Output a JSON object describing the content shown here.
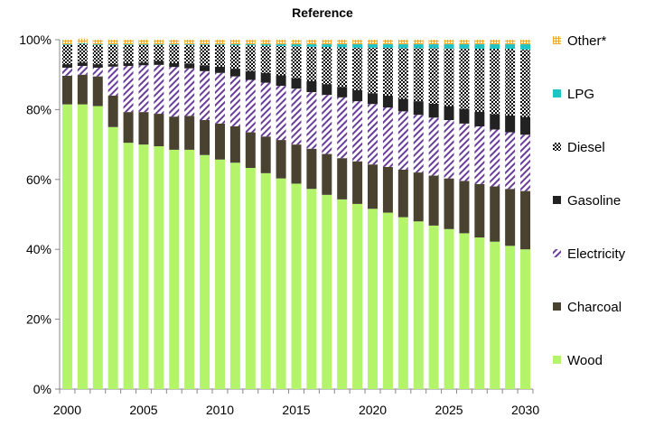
{
  "chart_data": {
    "type": "bar",
    "stacked": true,
    "title": "Reference",
    "xlabel": "",
    "ylabel": "",
    "ylim": [
      0,
      100
    ],
    "y_ticks": [
      "0%",
      "20%",
      "40%",
      "60%",
      "80%",
      "100%"
    ],
    "x_tick_labels": [
      "2000",
      "2005",
      "2010",
      "2015",
      "2020",
      "2025",
      "2030"
    ],
    "legend_placement": "right",
    "categories": [
      2000,
      2001,
      2002,
      2003,
      2004,
      2005,
      2006,
      2007,
      2008,
      2009,
      2010,
      2011,
      2012,
      2013,
      2014,
      2015,
      2016,
      2017,
      2018,
      2019,
      2020,
      2021,
      2022,
      2023,
      2024,
      2025,
      2026,
      2027,
      2028,
      2029,
      2030
    ],
    "series": [
      {
        "name": "Wood",
        "color": "#b3f46b",
        "pattern": "solid",
        "values": [
          81.5,
          81.5,
          81,
          75,
          70.5,
          70,
          69.5,
          68.5,
          68.5,
          67,
          65.7,
          64.8,
          63.3,
          61.8,
          60.3,
          58.8,
          57.3,
          55.6,
          54.3,
          53,
          51.6,
          50.5,
          49.2,
          48,
          46.8,
          45.8,
          44.6,
          43.4,
          42.2,
          41,
          40
        ]
      },
      {
        "name": "Charcoal",
        "color": "#4a4230",
        "pattern": "solid",
        "values": [
          8.2,
          8.5,
          8.5,
          9,
          8.8,
          9.3,
          9.3,
          9.5,
          9.7,
          10,
          10.3,
          10.4,
          10.2,
          10.5,
          11,
          11.2,
          11.5,
          11.7,
          11.8,
          12.2,
          12.7,
          13.1,
          13.6,
          14,
          14.3,
          14.5,
          15,
          15.3,
          15.8,
          16.3,
          16.7
        ]
      },
      {
        "name": "Electricity",
        "color": "#6a3d9a",
        "pattern": "diagonal",
        "values": [
          2.3,
          2.5,
          2.5,
          8.3,
          13.2,
          13.4,
          14,
          14.2,
          13.6,
          14,
          14.5,
          14.3,
          15,
          15.4,
          15.5,
          16,
          16.2,
          16.9,
          17.4,
          17.2,
          17.3,
          17,
          16.7,
          16.5,
          16.6,
          16.7,
          16.4,
          16.5,
          16.3,
          16.2,
          16.1
        ]
      },
      {
        "name": "Gasoline",
        "color": "#222222",
        "pattern": "solid",
        "values": [
          1,
          1,
          1,
          0.7,
          0.8,
          0.8,
          1.2,
          1.1,
          1.4,
          1.7,
          1.8,
          2.2,
          2.5,
          2.8,
          3,
          3,
          3.2,
          3.1,
          3,
          3.2,
          3.1,
          3.4,
          3.6,
          3.9,
          4,
          4,
          4.2,
          4.2,
          4.4,
          4.8,
          5.1
        ]
      },
      {
        "name": "Diesel",
        "color": "#000000",
        "pattern": "checker",
        "values": [
          5.5,
          5.3,
          5.5,
          5.5,
          5.2,
          5,
          4.5,
          5.2,
          5.3,
          5.8,
          6.2,
          6.7,
          7.4,
          7.8,
          8.4,
          9.1,
          9.8,
          10.6,
          11.3,
          12.1,
          13,
          13.7,
          14.5,
          15.2,
          15.9,
          16.5,
          17.3,
          18,
          18.7,
          19.1,
          19.3
        ]
      },
      {
        "name": "LPG",
        "color": "#1fc3c3",
        "pattern": "solid",
        "values": [
          0.2,
          0.2,
          0.2,
          0.2,
          0.2,
          0.2,
          0.2,
          0.2,
          0.2,
          0.2,
          0.2,
          0.3,
          0.3,
          0.4,
          0.5,
          0.6,
          0.7,
          0.8,
          0.9,
          1,
          1,
          1,
          1.1,
          1.1,
          1.1,
          1.2,
          1.2,
          1.3,
          1.3,
          1.3,
          1.5
        ]
      },
      {
        "name": "Other*",
        "color": "#f0a830",
        "pattern": "grid",
        "values": [
          1.3,
          1.3,
          1.3,
          1.3,
          1.3,
          1.3,
          1.3,
          1.3,
          1.3,
          1.3,
          1.3,
          1.3,
          1.3,
          1.3,
          1.3,
          1.3,
          1.3,
          1.3,
          1.3,
          1.3,
          1.3,
          1.3,
          1.3,
          1.3,
          1.3,
          1.3,
          1.3,
          1.3,
          1.3,
          1.3,
          1.3
        ]
      }
    ]
  }
}
